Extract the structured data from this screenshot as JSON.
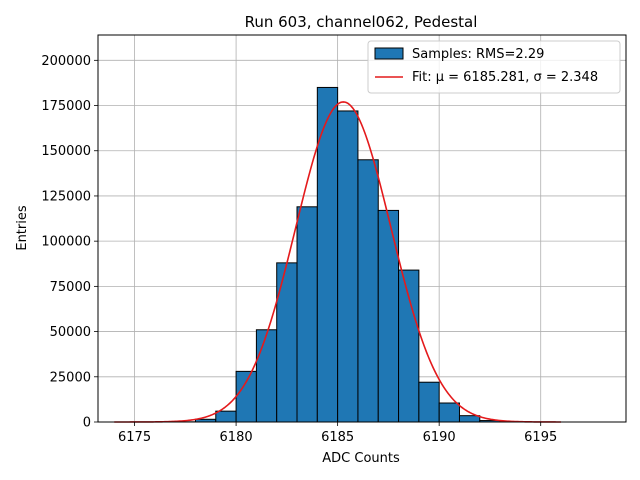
{
  "chart_data": {
    "type": "bar",
    "title": "Run 603, channel062, Pedestal",
    "xlabel": "ADC Counts",
    "ylabel": "Entries",
    "xlim": [
      6173.2,
      6199.2
    ],
    "ylim": [
      0,
      214000
    ],
    "xticks": [
      "6175",
      "6180",
      "6185",
      "6190",
      "6195"
    ],
    "xtick_values": [
      6175,
      6180,
      6185,
      6190,
      6195
    ],
    "yticks": [
      "0",
      "25000",
      "50000",
      "75000",
      "100000",
      "125000",
      "150000",
      "175000",
      "200000"
    ],
    "ytick_values": [
      0,
      25000,
      50000,
      75000,
      100000,
      125000,
      150000,
      175000,
      200000
    ],
    "grid": true,
    "legend_position": "top-right",
    "histogram": {
      "name": "Samples: RMS=2.29",
      "color": "#1f77b4",
      "edge_color": "#000000",
      "bin_edges": [
        6174,
        6175,
        6176,
        6177,
        6178,
        6179,
        6180,
        6181,
        6182,
        6183,
        6184,
        6185,
        6186,
        6187,
        6188,
        6189,
        6190,
        6191,
        6192,
        6193,
        6194,
        6195,
        6196,
        6197,
        6198
      ],
      "counts": [
        0,
        0,
        0,
        100,
        1500,
        6000,
        28000,
        51000,
        88000,
        119000,
        185000,
        172000,
        145000,
        117000,
        84000,
        22000,
        10500,
        3500,
        800,
        100,
        0,
        0,
        0,
        0
      ]
    },
    "fit": {
      "name": "Fit: μ = 6185.281, σ = 2.348",
      "color": "#e41a1c",
      "mu": 6185.281,
      "sigma": 2.348,
      "amplitude": 177000,
      "x_range": [
        6174,
        6196
      ]
    }
  }
}
